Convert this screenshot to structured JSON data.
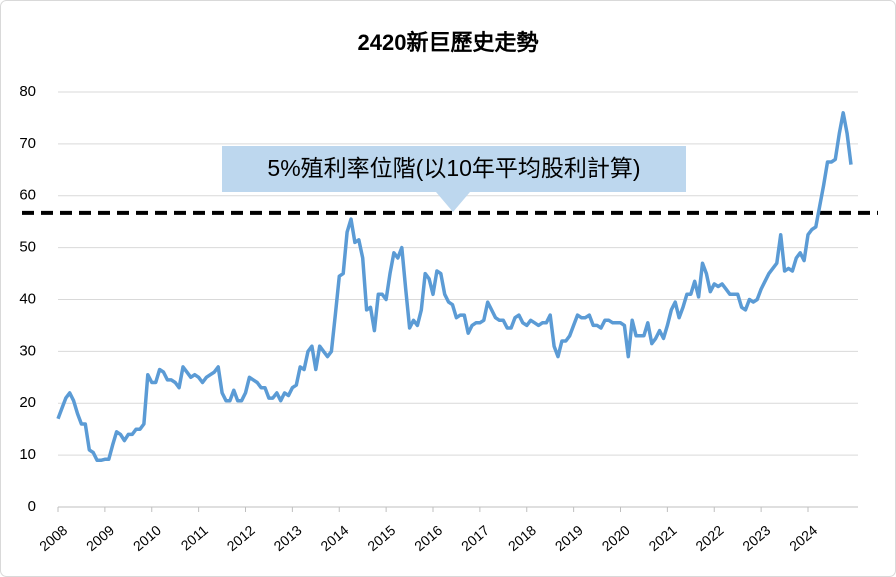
{
  "chart_data": {
    "type": "line",
    "title": "2420新巨歷史走勢",
    "annotation": "5%殖利率位階(以10年平均股利計算)",
    "reference_line": 56.7,
    "categories": [
      "2008",
      null,
      null,
      null,
      null,
      null,
      null,
      null,
      null,
      null,
      null,
      null,
      "2009",
      null,
      null,
      null,
      null,
      null,
      null,
      null,
      null,
      null,
      null,
      null,
      "2010",
      null,
      null,
      null,
      null,
      null,
      null,
      null,
      null,
      null,
      null,
      null,
      "2011",
      null,
      null,
      null,
      null,
      null,
      null,
      null,
      null,
      null,
      null,
      null,
      "2012",
      null,
      null,
      null,
      null,
      null,
      null,
      null,
      null,
      null,
      null,
      null,
      "2013",
      null,
      null,
      null,
      null,
      null,
      null,
      null,
      null,
      null,
      null,
      null,
      "2014",
      null,
      null,
      null,
      null,
      null,
      null,
      null,
      null,
      null,
      null,
      null,
      "2015",
      null,
      null,
      null,
      null,
      null,
      null,
      null,
      null,
      null,
      null,
      null,
      "2016",
      null,
      null,
      null,
      null,
      null,
      null,
      null,
      null,
      null,
      null,
      null,
      "2017",
      null,
      null,
      null,
      null,
      null,
      null,
      null,
      null,
      null,
      null,
      null,
      "2018",
      null,
      null,
      null,
      null,
      null,
      null,
      null,
      null,
      null,
      null,
      null,
      "2019",
      null,
      null,
      null,
      null,
      null,
      null,
      null,
      null,
      null,
      null,
      null,
      "2020",
      null,
      null,
      null,
      null,
      null,
      null,
      null,
      null,
      null,
      null,
      null,
      "2021",
      null,
      null,
      null,
      null,
      null,
      null,
      null,
      null,
      null,
      null,
      null,
      "2022",
      null,
      null,
      null,
      null,
      null,
      null,
      null,
      null,
      null,
      null,
      null,
      "2023",
      null,
      null,
      null,
      null,
      null,
      null,
      null,
      null,
      null,
      null,
      null,
      "2024",
      null,
      null,
      null,
      null,
      null,
      null,
      null,
      null,
      null,
      null,
      null
    ],
    "values": [
      17,
      19,
      21,
      22,
      20.5,
      18,
      16,
      16,
      11,
      10.5,
      9,
      9,
      9.2,
      9.2,
      12,
      14.5,
      14,
      12.8,
      14,
      14,
      15,
      15,
      16,
      25.5,
      24,
      24,
      26.5,
      26,
      24.5,
      24.5,
      24,
      23,
      27,
      26,
      25,
      25.5,
      25,
      24,
      25,
      25.5,
      26,
      27,
      22,
      20.5,
      20.5,
      22.5,
      20.5,
      20.5,
      22,
      25,
      24.5,
      24,
      23,
      23,
      21,
      21,
      22,
      20.5,
      22,
      21.5,
      23,
      23.5,
      27,
      26.5,
      30,
      31,
      26.5,
      31,
      30,
      29,
      30,
      37,
      44.5,
      45,
      53,
      55.5,
      51,
      51.5,
      48,
      38,
      38.5,
      34,
      41,
      41,
      40,
      45,
      49,
      48,
      50,
      42,
      34.5,
      36,
      35,
      38,
      45,
      44,
      41,
      45.5,
      45,
      41,
      39.5,
      39,
      36.5,
      37,
      37,
      33.5,
      35,
      35.5,
      35.5,
      36,
      39.5,
      38,
      36.5,
      36,
      36,
      34.5,
      34.5,
      36.5,
      37,
      35.5,
      35,
      36,
      35.5,
      35,
      35.5,
      35.5,
      37,
      31,
      29,
      32,
      32,
      33,
      35,
      37,
      36.5,
      36.5,
      37,
      35,
      35,
      34.5,
      36,
      36,
      35.5,
      35.5,
      35.5,
      35,
      29,
      36,
      33,
      33,
      33,
      35.5,
      31.5,
      32.5,
      34,
      32.5,
      35,
      38,
      39.5,
      36.5,
      38.5,
      41,
      41,
      43.5,
      40.5,
      47,
      45,
      41.5,
      43,
      42.5,
      43,
      42,
      41,
      41,
      41,
      38.5,
      38,
      40,
      39.5,
      40,
      42,
      43.5,
      45,
      46,
      47,
      52.5,
      45.5,
      46,
      45.5,
      48,
      49,
      47.5,
      52.5,
      53.5,
      54,
      58,
      62,
      66.5,
      66.5,
      67,
      72,
      76,
      72,
      66
    ],
    "color": "#5b9bd5",
    "ylim": [
      0,
      80
    ],
    "yticks": [
      0,
      10,
      20,
      30,
      40,
      50,
      60,
      70,
      80
    ],
    "grid": true
  }
}
